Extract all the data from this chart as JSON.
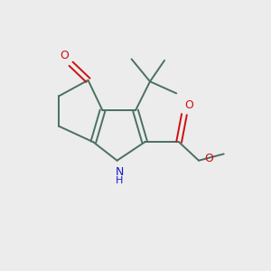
{
  "bg_color": "#ececec",
  "bond_color": "#4a7060",
  "bond_width": 1.4,
  "N_color": "#1818cc",
  "O_color": "#cc1010",
  "fig_size": [
    3.0,
    3.0
  ],
  "dpi": 100,
  "xlim": [
    0,
    10
  ],
  "ylim": [
    0,
    10
  ]
}
